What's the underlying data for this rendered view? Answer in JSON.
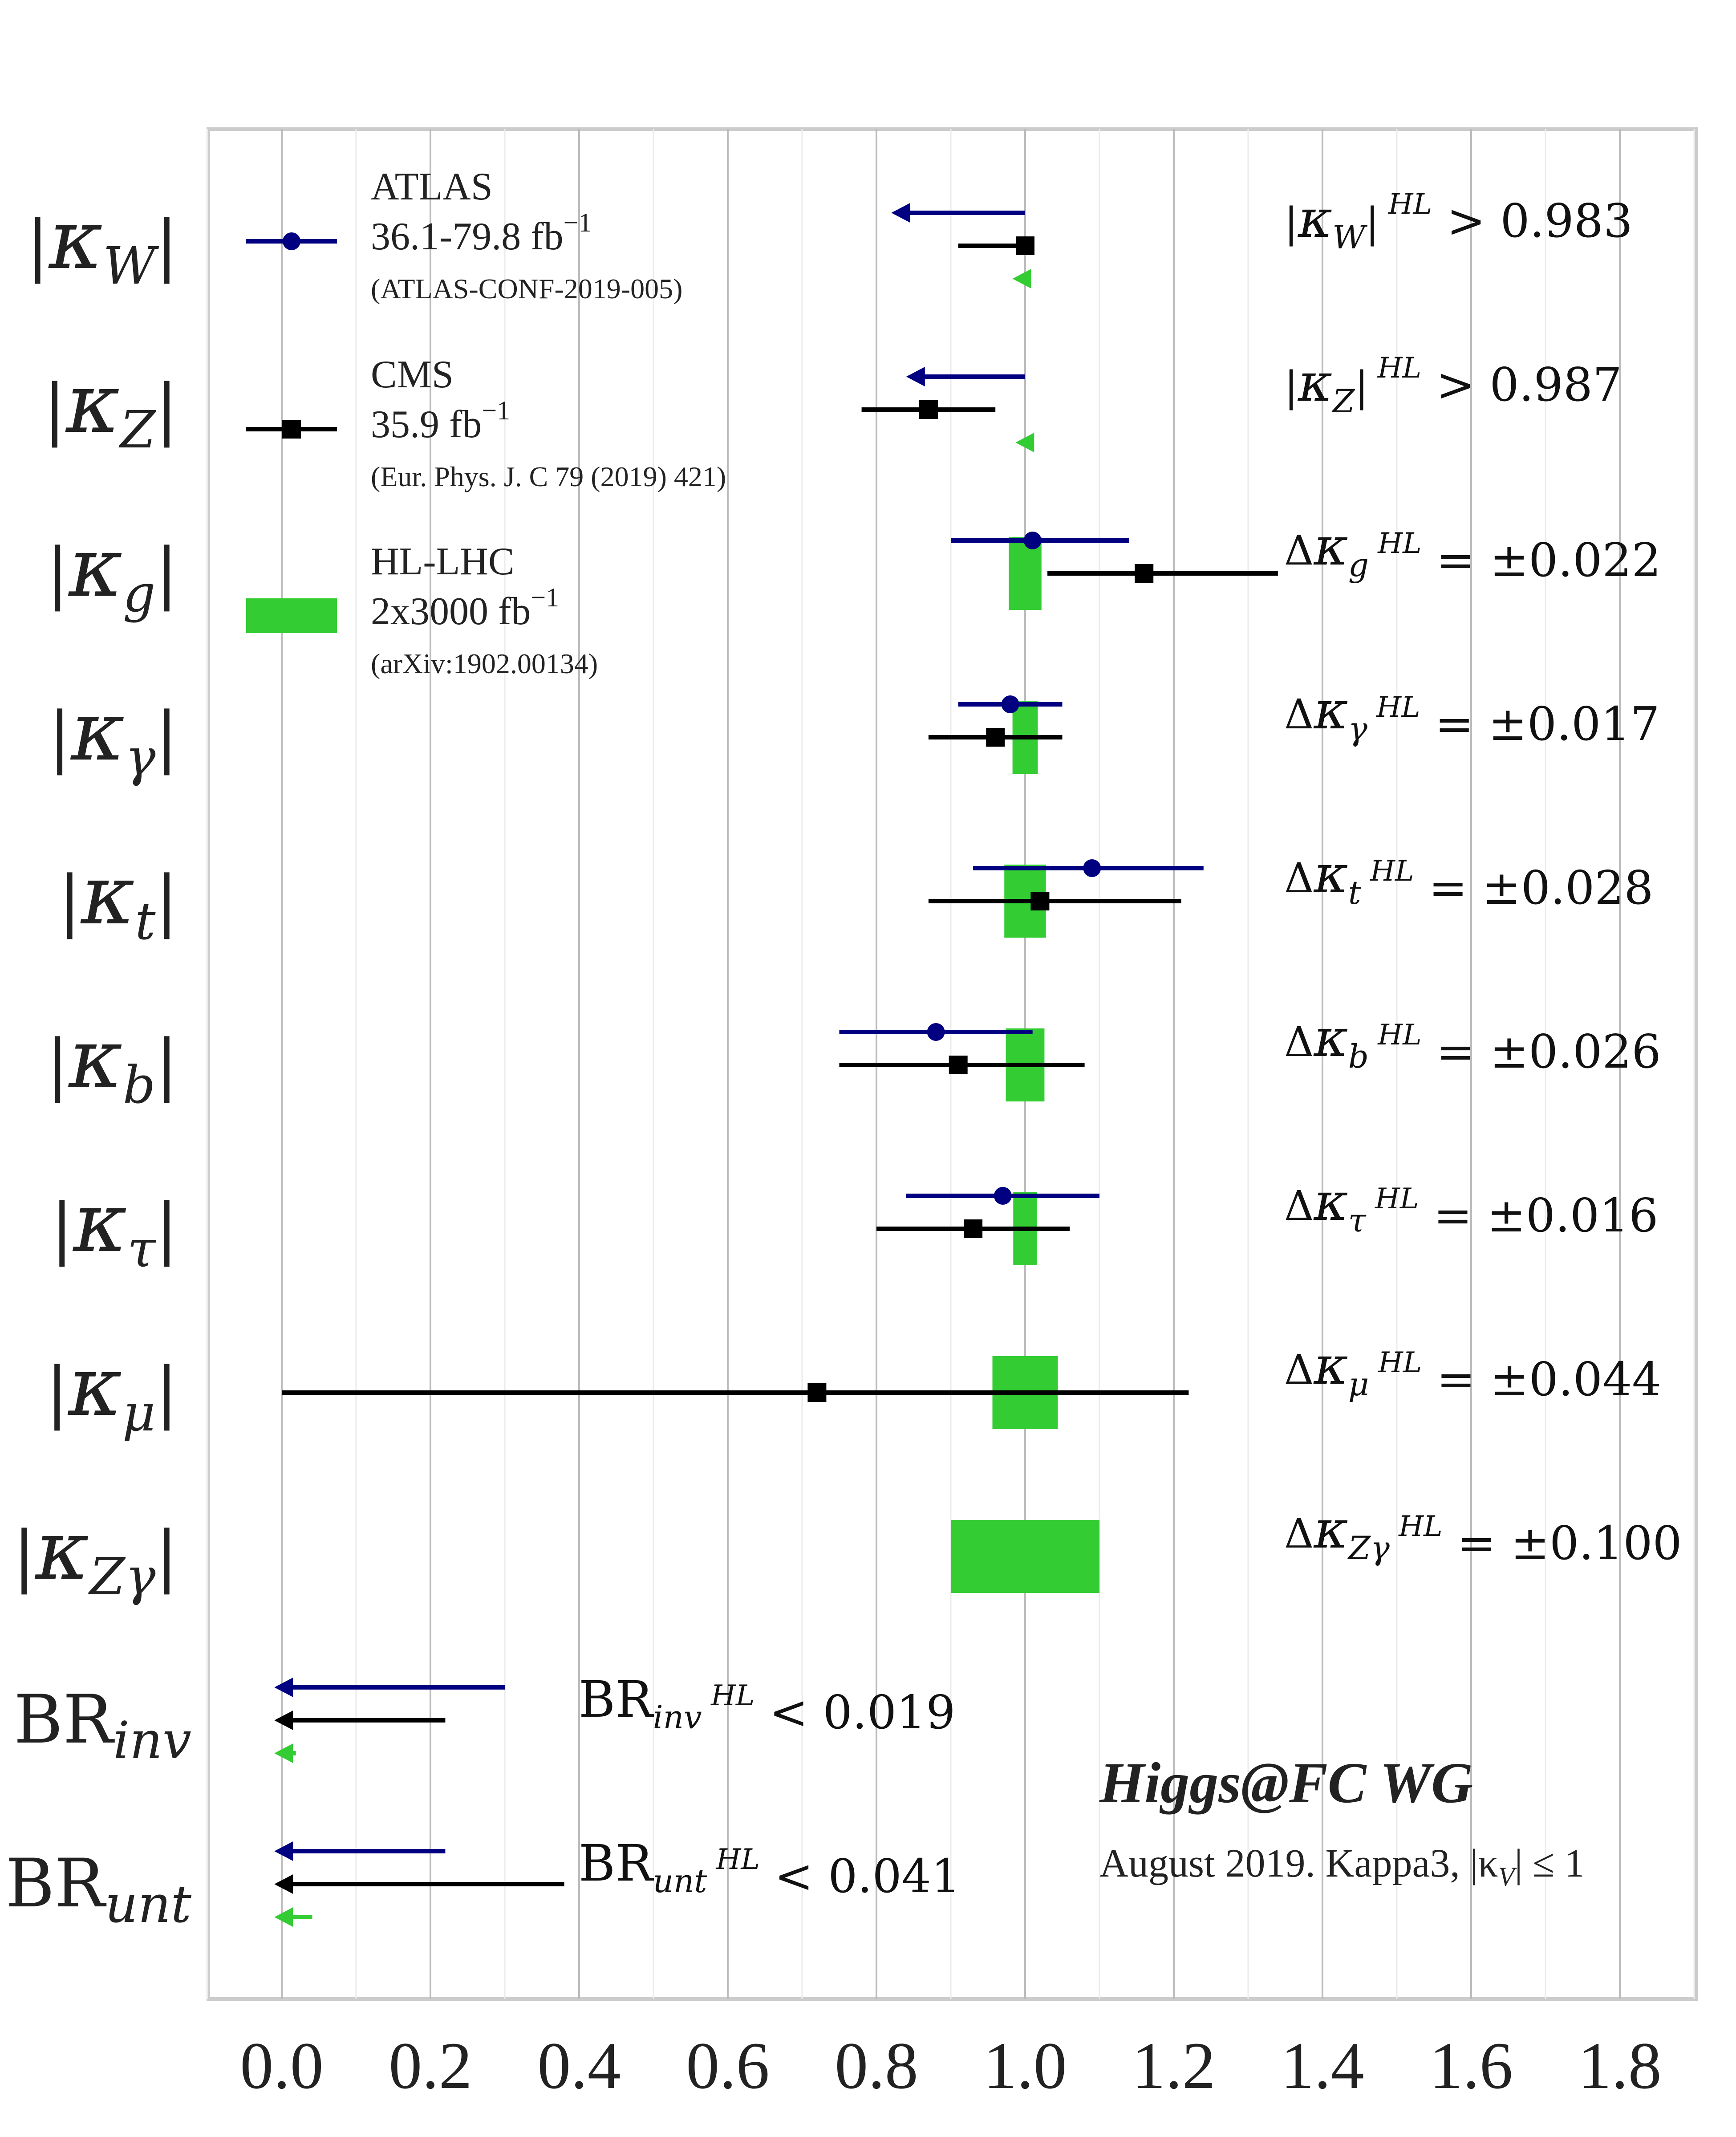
{
  "chart_data": {
    "type": "errorbar",
    "xlim": [
      -0.1,
      1.9
    ],
    "xticks": [
      "0.0",
      "0.2",
      "0.4",
      "0.6",
      "0.8",
      "1.0",
      "1.2",
      "1.4",
      "1.6",
      "1.8"
    ],
    "xtick_values": [
      0.0,
      0.2,
      0.4,
      0.6,
      0.8,
      1.0,
      1.2,
      1.4,
      1.6,
      1.8
    ],
    "grid": "vertical",
    "colors": {
      "atlas": "#000080",
      "cms": "#000000",
      "hl": "#33cc33",
      "grid": "#bbbbbb",
      "frame": "#cccccc"
    },
    "legend": {
      "atlas": {
        "title": "ATLAS",
        "lumi": "36.1-79.8 fb",
        "sup": "−1",
        "ref": "(ATLAS-CONF-2019-005)"
      },
      "cms": {
        "title": "CMS",
        "lumi": "35.9 fb",
        "sup": "−1",
        "ref": "(Eur. Phys. J. C 79 (2019) 421)"
      },
      "hl": {
        "title": "HL-LHC",
        "lumi": "2x3000 fb",
        "sup": "−1",
        "ref": "(arXiv:1902.00134)"
      }
    },
    "rows": [
      {
        "label": "κ",
        "sub": "W",
        "bars": true,
        "atlas": {
          "limit": true,
          "from": 1.0,
          "to": 0.82
        },
        "cms": {
          "value": 1.0,
          "lo": 0.91,
          "hi": 1.0
        },
        "hl": {
          "limit": true,
          "from": 1.0,
          "to": 0.983
        },
        "note": {
          "pre": "|κ",
          "sub": "W",
          "mid": "|",
          "sup": "HL",
          "post": " > 0.983"
        }
      },
      {
        "label": "κ",
        "sub": "Z",
        "bars": true,
        "atlas": {
          "limit": true,
          "from": 1.0,
          "to": 0.84
        },
        "cms": {
          "value": 0.87,
          "lo": 0.78,
          "hi": 0.96
        },
        "hl": {
          "limit": true,
          "from": 1.0,
          "to": 0.987
        },
        "note": {
          "pre": "|κ",
          "sub": "Z",
          "mid": "|",
          "sup": "HL",
          "post": " > 0.987"
        }
      },
      {
        "label": "κ",
        "sub": "g",
        "bars": true,
        "atlas": {
          "value": 1.01,
          "lo": 0.9,
          "hi": 1.14
        },
        "cms": {
          "value": 1.16,
          "lo": 1.03,
          "hi": 1.34
        },
        "hl": {
          "center": 1.0,
          "half": 0.022
        },
        "note": {
          "pre": "Δκ",
          "sub": "g",
          "mid": "",
          "sup": "HL",
          "post": " = ±0.022"
        }
      },
      {
        "label": "κ",
        "sub": "γ",
        "bars": true,
        "atlas": {
          "value": 0.98,
          "lo": 0.91,
          "hi": 1.05
        },
        "cms": {
          "value": 0.96,
          "lo": 0.87,
          "hi": 1.05
        },
        "hl": {
          "center": 1.0,
          "half": 0.017
        },
        "note": {
          "pre": "Δκ",
          "sub": "γ",
          "mid": "",
          "sup": "HL",
          "post": " = ±0.017"
        }
      },
      {
        "label": "κ",
        "sub": "t",
        "bars": true,
        "atlas": {
          "value": 1.09,
          "lo": 0.93,
          "hi": 1.24
        },
        "cms": {
          "value": 1.02,
          "lo": 0.87,
          "hi": 1.21
        },
        "hl": {
          "center": 1.0,
          "half": 0.028
        },
        "note": {
          "pre": "Δκ",
          "sub": "t",
          "mid": "",
          "sup": "HL",
          "post": " = ±0.028"
        }
      },
      {
        "label": "κ",
        "sub": "b",
        "bars": true,
        "atlas": {
          "value": 0.88,
          "lo": 0.75,
          "hi": 1.01
        },
        "cms": {
          "value": 0.91,
          "lo": 0.75,
          "hi": 1.08
        },
        "hl": {
          "center": 1.0,
          "half": 0.026
        },
        "note": {
          "pre": "Δκ",
          "sub": "b",
          "mid": "",
          "sup": "HL",
          "post": " = ±0.026"
        }
      },
      {
        "label": "κ",
        "sub": "τ",
        "bars": true,
        "atlas": {
          "value": 0.97,
          "lo": 0.84,
          "hi": 1.1
        },
        "cms": {
          "value": 0.93,
          "lo": 0.8,
          "hi": 1.06
        },
        "hl": {
          "center": 1.0,
          "half": 0.016
        },
        "note": {
          "pre": "Δκ",
          "sub": "τ",
          "mid": "",
          "sup": "HL",
          "post": " = ±0.016"
        }
      },
      {
        "label": "κ",
        "sub": "μ",
        "bars": true,
        "cms": {
          "value": 0.72,
          "lo": 0.0,
          "hi": 1.22
        },
        "hl": {
          "center": 1.0,
          "half": 0.044
        },
        "note": {
          "pre": "Δκ",
          "sub": "μ",
          "mid": "",
          "sup": "HL",
          "post": " = ±0.044"
        }
      },
      {
        "label": "κ",
        "sub": "Zγ",
        "bars": true,
        "hl": {
          "center": 1.0,
          "half": 0.1
        },
        "note": {
          "pre": "Δκ",
          "sub": "Zγ",
          "mid": "",
          "sup": "HL",
          "post": " = ±0.100"
        }
      },
      {
        "label": "BR",
        "sub": "inv",
        "bars": false,
        "atlas": {
          "limit": true,
          "from": 0.3,
          "to": -0.01
        },
        "cms": {
          "limit": true,
          "from": 0.22,
          "to": -0.01
        },
        "hl": {
          "limit": true,
          "from": 0.019,
          "to": -0.01
        },
        "note": {
          "pre": "BR",
          "sub": "inv",
          "mid": "",
          "sup": "HL",
          "post": " < 0.019"
        }
      },
      {
        "label": "BR",
        "sub": "unt",
        "bars": false,
        "atlas": {
          "limit": true,
          "from": 0.22,
          "to": -0.01
        },
        "cms": {
          "limit": true,
          "from": 0.38,
          "to": -0.01
        },
        "hl": {
          "limit": true,
          "from": 0.041,
          "to": -0.01
        },
        "note": {
          "pre": "BR",
          "sub": "unt",
          "mid": "",
          "sup": "HL",
          "post": " < 0.041"
        }
      }
    ],
    "watermark": {
      "title": "Higgs@FC WG",
      "subtitle_pre": "August 2019. Kappa3, |κ",
      "subtitle_sub": "V",
      "subtitle_post": "| ≤ 1"
    }
  }
}
